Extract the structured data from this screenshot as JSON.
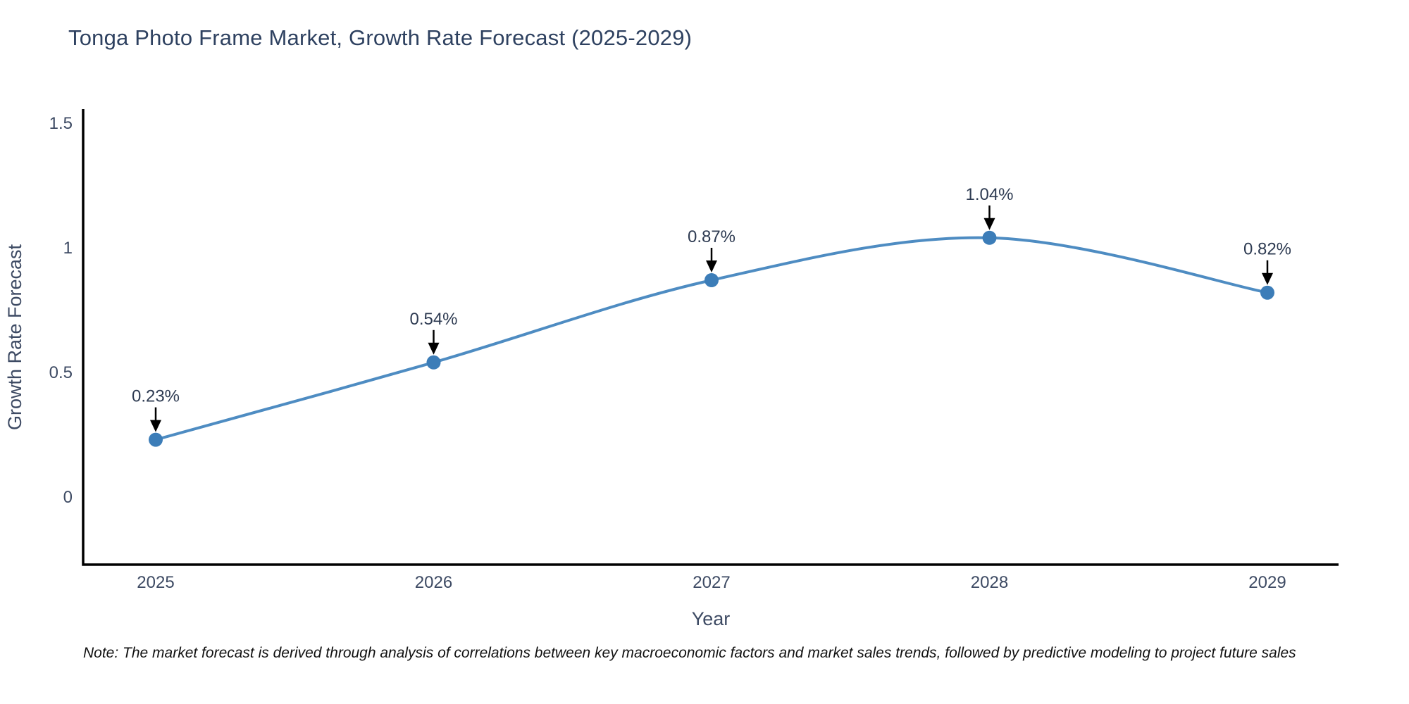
{
  "header": {
    "title": "Tonga Photo Frame Market, Growth Rate Forecast (2025-2029)"
  },
  "chart_data": {
    "type": "line",
    "title": "Tonga Photo Frame Market, Growth Rate Forecast (2025-2029)",
    "categories": [
      "2025",
      "2026",
      "2027",
      "2028",
      "2029"
    ],
    "series": [
      {
        "name": "Growth Rate Forecast",
        "values": [
          0.23,
          0.54,
          0.87,
          1.04,
          0.82
        ]
      }
    ],
    "point_labels": [
      "0.23%",
      "0.54%",
      "0.87%",
      "1.04%",
      "0.82%"
    ],
    "xlabel": "Year",
    "ylabel": "Growth Rate Forecast",
    "ylim": [
      -0.27,
      1.55
    ],
    "yticks": [
      0,
      0.5,
      1,
      1.5
    ],
    "ytick_labels": [
      "0",
      "0.5",
      "1",
      "1.5"
    ],
    "grid": false,
    "legend": "none",
    "line_color": "#4e8cc2",
    "marker_color": "#3c7db8",
    "axis_color": "#000000",
    "tick_text_color": "#3d4a63",
    "axis_title_color": "#3d4a63",
    "annotation_color": "#2e3b52",
    "annotation_arrow_color": "#000000"
  },
  "note": {
    "text": "Note: The market forecast is derived through analysis of correlations between key macroeconomic factors and market sales trends, followed by predictive modeling to project future sales"
  }
}
